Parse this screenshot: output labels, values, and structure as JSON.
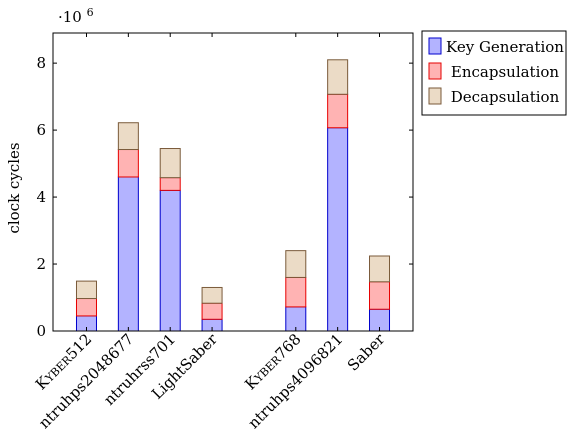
{
  "chart_data": {
    "type": "bar",
    "stacked": true,
    "title": "",
    "xlabel": "",
    "ylabel": "clock cycles",
    "y_scale_label": "·10",
    "y_scale_exponent": "6",
    "ylim": [
      0,
      8.9
    ],
    "yticks": [
      0,
      2,
      4,
      6,
      8
    ],
    "ytick_labels": [
      "0",
      "2",
      "4",
      "6",
      "8"
    ],
    "grid": false,
    "legend_position": "outside-top-right",
    "categories": [
      "Kyber512",
      "ntruhps2048677",
      "ntruhrss701",
      "LightSaber",
      "Kyber768",
      "ntruhps4096821",
      "Saber"
    ],
    "category_label_parts": [
      [
        {
          "t": "K",
          "small": false
        },
        {
          "t": "YBER",
          "small": true
        },
        {
          "t": "512",
          "small": false
        }
      ],
      [
        {
          "t": "ntruhps2048677",
          "small": false
        }
      ],
      [
        {
          "t": "ntruhrss701",
          "small": false
        }
      ],
      [
        {
          "t": "LightSaber",
          "small": false
        }
      ],
      [
        {
          "t": "K",
          "small": false
        },
        {
          "t": "YBER",
          "small": true
        },
        {
          "t": "768",
          "small": false
        }
      ],
      [
        {
          "t": "ntruhps4096821",
          "small": false
        }
      ],
      [
        {
          "t": "Saber",
          "small": false
        }
      ]
    ],
    "x_positions": [
      0,
      1,
      2,
      3,
      5,
      6,
      7
    ],
    "x_range": [
      -0.8,
      7.8
    ],
    "series": [
      {
        "name": "Key Generation",
        "color": "#b3b3ff",
        "stroke": "#0000cc",
        "values": [
          0.45,
          4.6,
          4.2,
          0.35,
          0.72,
          6.07,
          0.65
        ]
      },
      {
        "name": "Encapsulation",
        "color": "#ffb3b3",
        "stroke": "#e60000",
        "values": [
          0.52,
          0.82,
          0.38,
          0.48,
          0.88,
          1.0,
          0.82
        ]
      },
      {
        "name": "Decapsulation",
        "color": "#ebdbc6",
        "stroke": "#7a5a3a",
        "values": [
          0.52,
          0.8,
          0.87,
          0.47,
          0.8,
          1.03,
          0.77
        ]
      }
    ]
  }
}
